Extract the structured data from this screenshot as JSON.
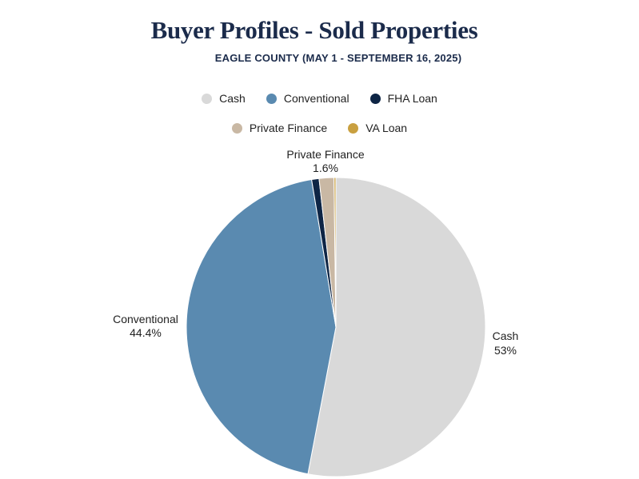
{
  "title": "Buyer Profiles - Sold Properties",
  "subtitle": "EAGLE COUNTY (MAY 1 - SEPTEMBER 16, 2025)",
  "colors": {
    "title": "#1b2b4b",
    "cash": "#d9d9d9",
    "conventional": "#5a8ab0",
    "fha": "#0e2545",
    "private": "#c9b8a4",
    "va": "#c9a040"
  },
  "chart_data": {
    "type": "pie",
    "title": "Buyer Profiles - Sold Properties",
    "subtitle": "EAGLE COUNTY (MAY 1 - SEPTEMBER 16, 2025)",
    "legend_placement": "top",
    "slices": [
      {
        "name": "Cash",
        "value": 53.0,
        "label": "Cash",
        "pct_label": "53%",
        "color": "#d9d9d9",
        "show_label": true
      },
      {
        "name": "Conventional",
        "value": 44.4,
        "label": "Conventional",
        "pct_label": "44.4%",
        "color": "#5a8ab0",
        "show_label": true
      },
      {
        "name": "FHA Loan",
        "value": 0.8,
        "label": "",
        "pct_label": "",
        "color": "#0e2545",
        "show_label": false
      },
      {
        "name": "Private Finance",
        "value": 1.6,
        "label": "Private Finance",
        "pct_label": "1.6%",
        "color": "#c9b8a4",
        "show_label": true
      },
      {
        "name": "VA Loan",
        "value": 0.2,
        "label": "",
        "pct_label": "",
        "color": "#c9a040",
        "show_label": false
      }
    ]
  },
  "legend": {
    "row1": [
      {
        "label": "Cash",
        "color": "#d9d9d9"
      },
      {
        "label": "Conventional",
        "color": "#5a8ab0"
      },
      {
        "label": "FHA Loan",
        "color": "#0e2545"
      }
    ],
    "row2": [
      {
        "label": "Private Finance",
        "color": "#c9b8a4"
      },
      {
        "label": "VA Loan",
        "color": "#c9a040"
      }
    ]
  }
}
